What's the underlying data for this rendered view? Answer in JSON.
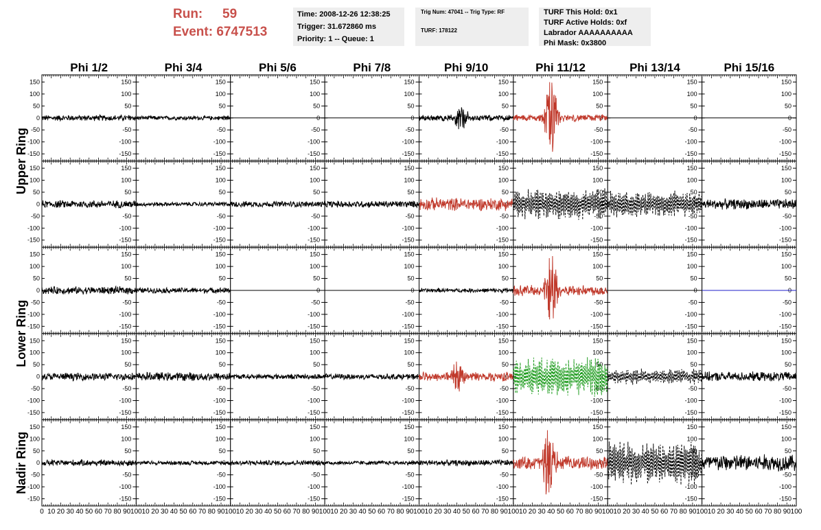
{
  "header": {
    "run_label": "Run:",
    "run_value": "59",
    "event_label": "Event:",
    "event_value": "6747513",
    "time": "Time: 2008-12-26 12:38:25",
    "trigger": "Trigger: 31.672860 ms",
    "priority": "Priority: 1 -- Queue: 1",
    "trig_num": "Trig Num: 47041 -- Trig Type: RF",
    "turf": "TURF: 178122",
    "turf_this_hold": "TURF This Hold: 0x1",
    "turf_active_holds": "TURF Active Holds: 0xf",
    "labrador": "Labrador AAAAAAAAAA",
    "phi_mask": "Phi Mask: 0x3800",
    "run_color": "#c8504b"
  },
  "chart_data": {
    "type": "line",
    "title": "",
    "columns": [
      "Phi 1/2",
      "Phi 3/4",
      "Phi 5/6",
      "Phi 7/8",
      "Phi 9/10",
      "Phi 11/12",
      "Phi 13/14",
      "Phi 15/16"
    ],
    "ring_labels": [
      "Upper Ring",
      "Lower Ring",
      "Nadir Ring"
    ],
    "xlim": [
      0,
      100
    ],
    "ylim": [
      -180,
      180
    ],
    "yticks": [
      -150,
      -100,
      -50,
      0,
      50,
      100,
      150
    ],
    "xtick_labels": [
      "0",
      "10",
      "20",
      "30",
      "40",
      "50",
      "60",
      "70",
      "80",
      "90",
      "100"
    ],
    "colors": {
      "black": "#000000",
      "red": "#c0392b",
      "green": "#1e9c1e",
      "blue": "#1c1cc8"
    },
    "panels": [
      [
        {
          "style": "noise",
          "amp": 14,
          "color": "black"
        },
        {
          "style": "noise",
          "amp": 10,
          "color": "black"
        },
        {
          "style": "flat",
          "color": "black"
        },
        {
          "style": "flat",
          "color": "black"
        },
        {
          "style": "noise",
          "amp": 14,
          "peak_x": 45,
          "peak_amp": 55,
          "color": "black"
        },
        {
          "style": "pulse",
          "amp": 16,
          "peak_x": 40,
          "peak_amp": 165,
          "color": "red"
        },
        {
          "style": "flat",
          "color": "black"
        },
        {
          "style": "flat",
          "color": "black"
        }
      ],
      [
        {
          "style": "noise",
          "amp": 18,
          "color": "black"
        },
        {
          "style": "noise",
          "amp": 10,
          "color": "black"
        },
        {
          "style": "noise",
          "amp": 14,
          "color": "black"
        },
        {
          "style": "noise",
          "amp": 16,
          "color": "black"
        },
        {
          "style": "noise",
          "amp": 30,
          "color": "red"
        },
        {
          "style": "dashed",
          "amp": 70,
          "color": "black"
        },
        {
          "style": "dashed",
          "amp": 60,
          "color": "black"
        },
        {
          "style": "noise",
          "amp": 24,
          "color": "black"
        }
      ],
      [
        {
          "style": "noise",
          "amp": 18,
          "color": "black"
        },
        {
          "style": "noise",
          "amp": 13,
          "color": "black"
        },
        {
          "style": "flat",
          "color": "black"
        },
        {
          "style": "flat",
          "color": "black"
        },
        {
          "style": "noise",
          "amp": 10,
          "color": "black"
        },
        {
          "style": "pulse",
          "amp": 24,
          "peak_x": 40,
          "peak_amp": 155,
          "color": "red"
        },
        {
          "style": "flat",
          "color": "black"
        },
        {
          "style": "flat",
          "color": "blue"
        }
      ],
      [
        {
          "style": "noise",
          "amp": 18,
          "color": "black"
        },
        {
          "style": "noise",
          "amp": 20,
          "color": "black"
        },
        {
          "style": "noise",
          "amp": 12,
          "color": "black"
        },
        {
          "style": "noise",
          "amp": 14,
          "color": "black"
        },
        {
          "style": "noise",
          "amp": 22,
          "peak_x": 40,
          "peak_amp": 60,
          "color": "red"
        },
        {
          "style": "dashed",
          "amp": 85,
          "color": "green"
        },
        {
          "style": "dashed",
          "amp": 35,
          "color": "black"
        },
        {
          "style": "noise",
          "amp": 22,
          "color": "black"
        }
      ],
      [
        {
          "style": "noise",
          "amp": 15,
          "color": "black"
        },
        {
          "style": "noise",
          "amp": 10,
          "color": "black"
        },
        {
          "style": "noise",
          "amp": 12,
          "color": "black"
        },
        {
          "style": "noise",
          "amp": 10,
          "color": "black"
        },
        {
          "style": "noise",
          "amp": 14,
          "color": "black"
        },
        {
          "style": "pulse",
          "amp": 30,
          "peak_x": 38,
          "peak_amp": 160,
          "color": "red"
        },
        {
          "style": "dashed",
          "amp": 95,
          "color": "black"
        },
        {
          "style": "noise",
          "amp": 40,
          "color": "black"
        }
      ]
    ]
  }
}
